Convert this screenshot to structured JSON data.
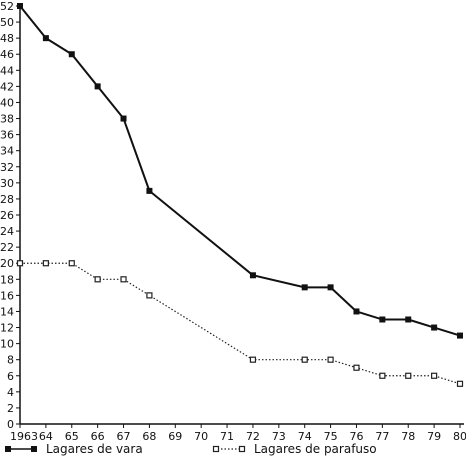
{
  "chart_data": {
    "type": "line",
    "title": "",
    "xlabel": "",
    "ylabel": "",
    "categories": [
      "1963",
      "64",
      "65",
      "66",
      "67",
      "68",
      "69",
      "70",
      "71",
      "72",
      "73",
      "74",
      "75",
      "76",
      "77",
      "78",
      "79",
      "80"
    ],
    "ylim": [
      0,
      52
    ],
    "yticks": [
      0,
      2,
      4,
      6,
      8,
      10,
      12,
      14,
      16,
      18,
      20,
      22,
      24,
      26,
      28,
      30,
      32,
      34,
      36,
      38,
      40,
      42,
      44,
      46,
      48,
      50,
      52
    ],
    "grid": false,
    "legend_position": "bottom",
    "series": [
      {
        "name": "Lagares de vara",
        "marker": "filled-square",
        "line_style": "solid",
        "color": "#111111",
        "points": [
          {
            "x": "1963",
            "y": 52
          },
          {
            "x": "64",
            "y": 48
          },
          {
            "x": "65",
            "y": 46
          },
          {
            "x": "66",
            "y": 42
          },
          {
            "x": "67",
            "y": 38
          },
          {
            "x": "68",
            "y": 29
          },
          {
            "x": "72",
            "y": 18.5
          },
          {
            "x": "74",
            "y": 17
          },
          {
            "x": "75",
            "y": 17
          },
          {
            "x": "76",
            "y": 14
          },
          {
            "x": "77",
            "y": 13
          },
          {
            "x": "78",
            "y": 13
          },
          {
            "x": "79",
            "y": 12
          },
          {
            "x": "80",
            "y": 11
          }
        ]
      },
      {
        "name": "Lagares de parafuso",
        "marker": "open-square",
        "line_style": "dotted",
        "color": "#222222",
        "points": [
          {
            "x": "1963",
            "y": 20
          },
          {
            "x": "64",
            "y": 20
          },
          {
            "x": "65",
            "y": 20
          },
          {
            "x": "66",
            "y": 18
          },
          {
            "x": "67",
            "y": 18
          },
          {
            "x": "68",
            "y": 16
          },
          {
            "x": "72",
            "y": 8
          },
          {
            "x": "74",
            "y": 8
          },
          {
            "x": "75",
            "y": 8
          },
          {
            "x": "76",
            "y": 7
          },
          {
            "x": "77",
            "y": 6
          },
          {
            "x": "78",
            "y": 6
          },
          {
            "x": "79",
            "y": 6
          },
          {
            "x": "80",
            "y": 5
          }
        ]
      }
    ]
  }
}
